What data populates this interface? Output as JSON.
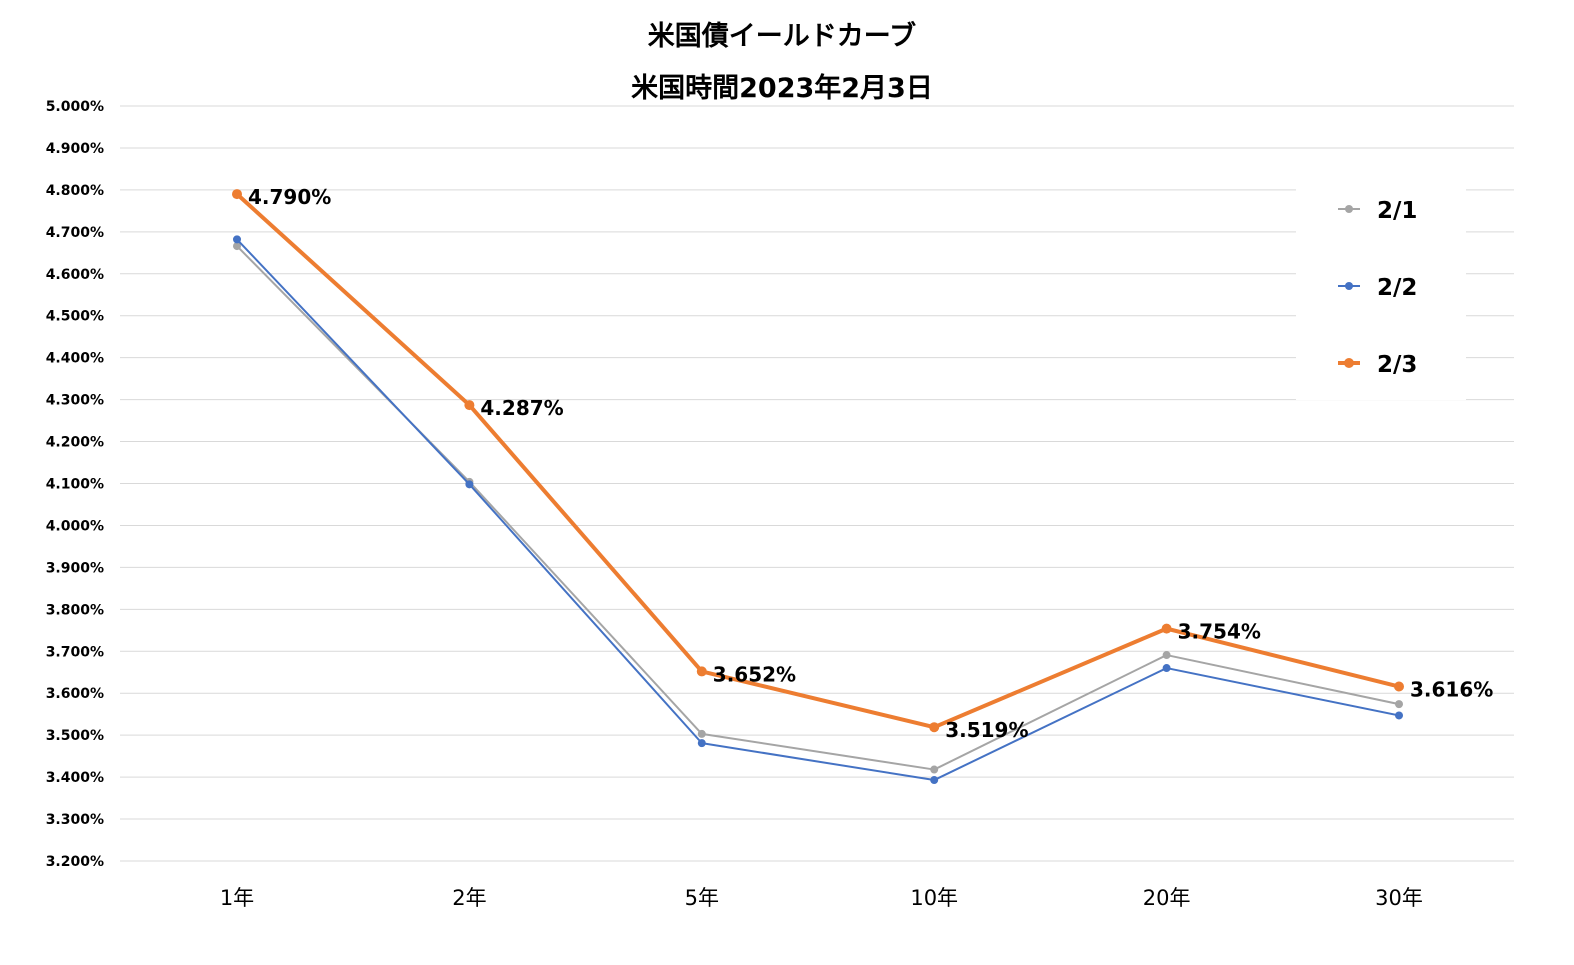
{
  "chart_data": {
    "type": "line",
    "title": "米国債イールドカーブ",
    "subtitle": "米国時間2023年2月3日",
    "categories": [
      "1年",
      "2年",
      "5年",
      "10年",
      "20年",
      "30年"
    ],
    "ylim": [
      3.2,
      5.0
    ],
    "ytick_step": 0.1,
    "ytick_labels": [
      "3.200%",
      "3.300%",
      "3.400%",
      "3.500%",
      "3.600%",
      "3.700%",
      "3.800%",
      "3.900%",
      "4.000%",
      "4.100%",
      "4.200%",
      "4.300%",
      "4.400%",
      "4.500%",
      "4.600%",
      "4.700%",
      "4.800%",
      "4.900%",
      "5.000%"
    ],
    "grid": true,
    "legend_position": "right",
    "series": [
      {
        "name": "2/1",
        "color": "#a5a5a5",
        "values": [
          4.666,
          4.104,
          3.503,
          3.418,
          3.691,
          3.574
        ]
      },
      {
        "name": "2/2",
        "color": "#4472c4",
        "values": [
          4.682,
          4.098,
          3.481,
          3.393,
          3.66,
          3.547
        ]
      },
      {
        "name": "2/3",
        "color": "#ed7d31",
        "values": [
          4.79,
          4.287,
          3.652,
          3.519,
          3.754,
          3.616
        ],
        "data_labels": [
          "4.790%",
          "4.287%",
          "3.652%",
          "3.519%",
          "3.754%",
          "3.616%"
        ]
      }
    ]
  }
}
